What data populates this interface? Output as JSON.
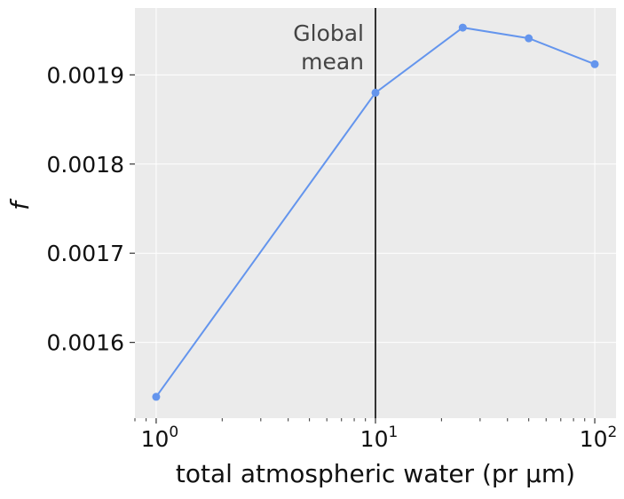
{
  "chart_data": {
    "type": "line",
    "xscale": "log",
    "xlim": [
      0.8,
      125
    ],
    "ylim": [
      0.001515,
      0.001975
    ],
    "grid": true,
    "background": "#ebebeb",
    "line_color": "#6495ed",
    "xlabel": "total atmospheric water (pr μm)",
    "ylabel": "f",
    "x_ticks": [
      {
        "value": 1,
        "base": "10",
        "exp": "0"
      },
      {
        "value": 10,
        "base": "10",
        "exp": "1"
      },
      {
        "value": 100,
        "base": "10",
        "exp": "2"
      }
    ],
    "y_ticks": [
      {
        "value": 0.0016,
        "label": "0.0016"
      },
      {
        "value": 0.0017,
        "label": "0.0017"
      },
      {
        "value": 0.0018,
        "label": "0.0018"
      },
      {
        "value": 0.0019,
        "label": "0.0019"
      }
    ],
    "series": [
      {
        "x": [
          1,
          10,
          25,
          50,
          100
        ],
        "y": [
          0.001539,
          0.00188,
          0.001953,
          0.001941,
          0.001912
        ]
      }
    ],
    "vline": {
      "x": 10,
      "color": "#333333",
      "label_lines": [
        "Global",
        "mean"
      ]
    }
  }
}
